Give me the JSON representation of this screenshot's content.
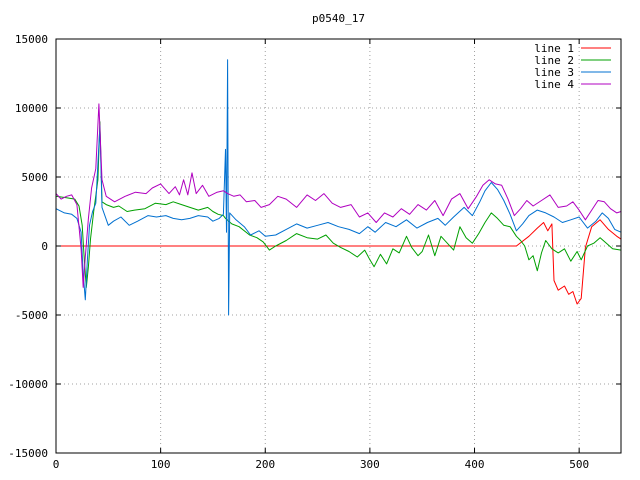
{
  "chart_data": {
    "type": "line",
    "title": "p0540_17",
    "xlabel": "",
    "ylabel": "",
    "xlim": [
      0,
      540
    ],
    "ylim": [
      -15000,
      15000
    ],
    "xticks": [
      0,
      100,
      200,
      300,
      400,
      500
    ],
    "yticks": [
      -15000,
      -10000,
      -5000,
      0,
      5000,
      10000,
      15000
    ],
    "grid": true,
    "legend_position": "top-right",
    "series": [
      {
        "name": "line 1",
        "color": "#ff0000",
        "points": [
          [
            0,
            0
          ],
          [
            100,
            0
          ],
          [
            200,
            0
          ],
          [
            300,
            0
          ],
          [
            400,
            0
          ],
          [
            440,
            0
          ],
          [
            452,
            700
          ],
          [
            460,
            1300
          ],
          [
            466,
            1700
          ],
          [
            470,
            1100
          ],
          [
            474,
            1600
          ],
          [
            476,
            -2500
          ],
          [
            480,
            -3200
          ],
          [
            486,
            -2900
          ],
          [
            490,
            -3500
          ],
          [
            494,
            -3300
          ],
          [
            498,
            -4200
          ],
          [
            502,
            -3800
          ],
          [
            506,
            -100
          ],
          [
            512,
            1400
          ],
          [
            520,
            1900
          ],
          [
            528,
            1200
          ],
          [
            536,
            700
          ],
          [
            540,
            500
          ]
        ]
      },
      {
        "name": "line 2",
        "color": "#00a000",
        "points": [
          [
            0,
            3600
          ],
          [
            10,
            3500
          ],
          [
            18,
            3400
          ],
          [
            22,
            2900
          ],
          [
            25,
            1500
          ],
          [
            27,
            -1000
          ],
          [
            29,
            -3000
          ],
          [
            31,
            -1500
          ],
          [
            33,
            500
          ],
          [
            36,
            2500
          ],
          [
            40,
            4800
          ],
          [
            42,
            9000
          ],
          [
            44,
            3200
          ],
          [
            48,
            3000
          ],
          [
            55,
            2800
          ],
          [
            60,
            2900
          ],
          [
            68,
            2500
          ],
          [
            75,
            2600
          ],
          [
            85,
            2700
          ],
          [
            95,
            3100
          ],
          [
            105,
            3000
          ],
          [
            112,
            3200
          ],
          [
            120,
            3000
          ],
          [
            128,
            2800
          ],
          [
            136,
            2600
          ],
          [
            145,
            2800
          ],
          [
            150,
            2500
          ],
          [
            155,
            2300
          ],
          [
            160,
            2200
          ],
          [
            162,
            2000
          ],
          [
            168,
            1600
          ],
          [
            175,
            1400
          ],
          [
            185,
            800
          ],
          [
            192,
            600
          ],
          [
            198,
            300
          ],
          [
            204,
            -300
          ],
          [
            210,
            0
          ],
          [
            220,
            400
          ],
          [
            230,
            900
          ],
          [
            240,
            600
          ],
          [
            250,
            500
          ],
          [
            258,
            800
          ],
          [
            265,
            200
          ],
          [
            272,
            -100
          ],
          [
            280,
            -400
          ],
          [
            288,
            -800
          ],
          [
            295,
            -300
          ],
          [
            300,
            -1000
          ],
          [
            304,
            -1500
          ],
          [
            310,
            -600
          ],
          [
            316,
            -1300
          ],
          [
            322,
            -200
          ],
          [
            328,
            -500
          ],
          [
            335,
            700
          ],
          [
            340,
            -100
          ],
          [
            346,
            -700
          ],
          [
            350,
            -400
          ],
          [
            356,
            800
          ],
          [
            362,
            -700
          ],
          [
            368,
            700
          ],
          [
            374,
            200
          ],
          [
            380,
            -300
          ],
          [
            386,
            1400
          ],
          [
            392,
            600
          ],
          [
            398,
            200
          ],
          [
            404,
            900
          ],
          [
            410,
            1700
          ],
          [
            416,
            2400
          ],
          [
            422,
            2000
          ],
          [
            428,
            1500
          ],
          [
            434,
            1400
          ],
          [
            440,
            700
          ],
          [
            444,
            400
          ],
          [
            448,
            0
          ],
          [
            452,
            -1000
          ],
          [
            456,
            -700
          ],
          [
            460,
            -1800
          ],
          [
            464,
            -500
          ],
          [
            468,
            400
          ],
          [
            474,
            -200
          ],
          [
            480,
            -500
          ],
          [
            486,
            -200
          ],
          [
            492,
            -1100
          ],
          [
            498,
            -400
          ],
          [
            502,
            -1000
          ],
          [
            508,
            0
          ],
          [
            514,
            200
          ],
          [
            520,
            600
          ],
          [
            526,
            200
          ],
          [
            532,
            -200
          ],
          [
            540,
            -300
          ]
        ]
      },
      {
        "name": "line 3",
        "color": "#0070d0",
        "points": [
          [
            0,
            2700
          ],
          [
            8,
            2400
          ],
          [
            15,
            2300
          ],
          [
            20,
            2000
          ],
          [
            24,
            1000
          ],
          [
            26,
            -2000
          ],
          [
            28,
            -3900
          ],
          [
            30,
            -1000
          ],
          [
            32,
            1500
          ],
          [
            35,
            2500
          ],
          [
            38,
            3100
          ],
          [
            42,
            8700
          ],
          [
            44,
            2800
          ],
          [
            50,
            1500
          ],
          [
            55,
            1800
          ],
          [
            62,
            2100
          ],
          [
            70,
            1500
          ],
          [
            78,
            1800
          ],
          [
            88,
            2200
          ],
          [
            96,
            2100
          ],
          [
            105,
            2200
          ],
          [
            112,
            2000
          ],
          [
            120,
            1900
          ],
          [
            128,
            2000
          ],
          [
            136,
            2200
          ],
          [
            145,
            2100
          ],
          [
            150,
            1800
          ],
          [
            156,
            2000
          ],
          [
            160,
            2300
          ],
          [
            162,
            7000
          ],
          [
            163,
            1000
          ],
          [
            164,
            13500
          ],
          [
            165,
            -5000
          ],
          [
            166,
            2400
          ],
          [
            172,
            1900
          ],
          [
            180,
            1400
          ],
          [
            186,
            800
          ],
          [
            194,
            1100
          ],
          [
            200,
            700
          ],
          [
            210,
            800
          ],
          [
            220,
            1200
          ],
          [
            230,
            1600
          ],
          [
            240,
            1300
          ],
          [
            250,
            1500
          ],
          [
            260,
            1700
          ],
          [
            270,
            1400
          ],
          [
            280,
            1200
          ],
          [
            290,
            900
          ],
          [
            298,
            1400
          ],
          [
            305,
            1000
          ],
          [
            315,
            1700
          ],
          [
            325,
            1400
          ],
          [
            335,
            1900
          ],
          [
            345,
            1300
          ],
          [
            355,
            1700
          ],
          [
            365,
            2000
          ],
          [
            372,
            1500
          ],
          [
            380,
            2100
          ],
          [
            390,
            2800
          ],
          [
            398,
            2200
          ],
          [
            405,
            3200
          ],
          [
            410,
            4000
          ],
          [
            416,
            4600
          ],
          [
            422,
            4100
          ],
          [
            428,
            3300
          ],
          [
            434,
            2300
          ],
          [
            440,
            1100
          ],
          [
            446,
            1600
          ],
          [
            452,
            2200
          ],
          [
            460,
            2600
          ],
          [
            468,
            2400
          ],
          [
            476,
            2100
          ],
          [
            484,
            1700
          ],
          [
            492,
            1900
          ],
          [
            500,
            2100
          ],
          [
            508,
            1300
          ],
          [
            516,
            1800
          ],
          [
            522,
            2400
          ],
          [
            528,
            2000
          ],
          [
            534,
            1200
          ],
          [
            540,
            1000
          ]
        ]
      },
      {
        "name": "line 4",
        "color": "#b000c0",
        "points": [
          [
            0,
            3800
          ],
          [
            5,
            3400
          ],
          [
            10,
            3600
          ],
          [
            15,
            3700
          ],
          [
            20,
            3000
          ],
          [
            24,
            -200
          ],
          [
            26,
            -3000
          ],
          [
            28,
            -800
          ],
          [
            31,
            2000
          ],
          [
            34,
            4200
          ],
          [
            38,
            5600
          ],
          [
            41,
            10300
          ],
          [
            44,
            4800
          ],
          [
            48,
            3600
          ],
          [
            56,
            3200
          ],
          [
            66,
            3600
          ],
          [
            76,
            3900
          ],
          [
            86,
            3800
          ],
          [
            92,
            4200
          ],
          [
            100,
            4500
          ],
          [
            108,
            3800
          ],
          [
            114,
            4300
          ],
          [
            118,
            3700
          ],
          [
            122,
            4800
          ],
          [
            126,
            3700
          ],
          [
            130,
            5300
          ],
          [
            134,
            3800
          ],
          [
            140,
            4400
          ],
          [
            146,
            3600
          ],
          [
            154,
            3900
          ],
          [
            160,
            4000
          ],
          [
            164,
            3800
          ],
          [
            170,
            3600
          ],
          [
            176,
            3700
          ],
          [
            182,
            3200
          ],
          [
            190,
            3300
          ],
          [
            196,
            2800
          ],
          [
            204,
            3000
          ],
          [
            212,
            3600
          ],
          [
            220,
            3400
          ],
          [
            230,
            2800
          ],
          [
            240,
            3700
          ],
          [
            248,
            3300
          ],
          [
            256,
            3800
          ],
          [
            264,
            3100
          ],
          [
            272,
            2800
          ],
          [
            282,
            3000
          ],
          [
            290,
            2100
          ],
          [
            298,
            2400
          ],
          [
            306,
            1700
          ],
          [
            314,
            2400
          ],
          [
            322,
            2100
          ],
          [
            330,
            2700
          ],
          [
            338,
            2300
          ],
          [
            346,
            3000
          ],
          [
            354,
            2600
          ],
          [
            362,
            3300
          ],
          [
            370,
            2200
          ],
          [
            378,
            3400
          ],
          [
            386,
            3800
          ],
          [
            394,
            2700
          ],
          [
            402,
            3600
          ],
          [
            408,
            4400
          ],
          [
            414,
            4800
          ],
          [
            420,
            4500
          ],
          [
            426,
            4400
          ],
          [
            432,
            3400
          ],
          [
            438,
            2200
          ],
          [
            444,
            2700
          ],
          [
            450,
            3300
          ],
          [
            456,
            2900
          ],
          [
            464,
            3300
          ],
          [
            472,
            3700
          ],
          [
            480,
            2800
          ],
          [
            488,
            2900
          ],
          [
            494,
            3200
          ],
          [
            500,
            2600
          ],
          [
            506,
            1900
          ],
          [
            512,
            2600
          ],
          [
            518,
            3300
          ],
          [
            524,
            3200
          ],
          [
            530,
            2700
          ],
          [
            536,
            2400
          ],
          [
            540,
            2500
          ]
        ]
      }
    ]
  }
}
